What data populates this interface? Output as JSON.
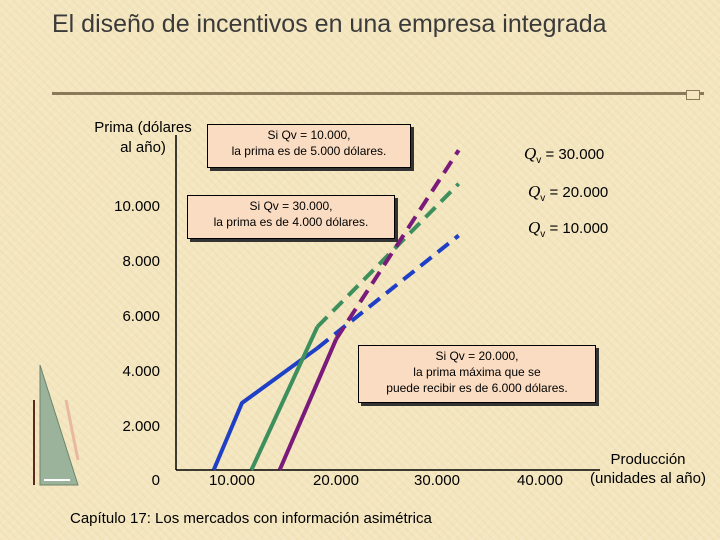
{
  "slide": {
    "title": "El diseño de incentivos en una empresa integrada",
    "footer": "Capítulo 17: Los mercados con información asimétrica"
  },
  "callouts": {
    "c1_line1": "Si Qv = 10.000,",
    "c1_line2": "la prima es de 5.000 dólares.",
    "c2_line1": "Si Qv = 30.000,",
    "c2_line2": "la prima es de 4.000 dólares.",
    "c3_line1": "Si Qv = 20.000,",
    "c3_line2": "la prima máxima que se",
    "c3_line3": "puede recibir es de 6.000 dólares."
  },
  "chart_data": {
    "type": "line",
    "ylabel": "Prima (dólares al año)",
    "xlabel": "Producción (unidades al año)",
    "y_ticks": [
      "10.000",
      "8.000",
      "6.000",
      "4.000",
      "2.000",
      "0"
    ],
    "x_ticks": [
      "10.000",
      "20.000",
      "30.000",
      "40.000"
    ],
    "xlim": [
      0,
      45000
    ],
    "ylim": [
      0,
      11000
    ],
    "series": [
      {
        "name": "Qv = 10.000",
        "color": "#1f3fc4",
        "solid_points": [
          [
            4000,
            0
          ],
          [
            7000,
            2200
          ],
          [
            15000,
            4000
          ]
        ],
        "dashed_points": [
          [
            15000,
            4000
          ],
          [
            30000,
            7700
          ]
        ]
      },
      {
        "name": "Qv = 20.000",
        "color": "#3e8f5e",
        "solid_points": [
          [
            8000,
            0
          ],
          [
            15000,
            4700
          ]
        ],
        "dashed_points": [
          [
            15000,
            4700
          ],
          [
            30000,
            9400
          ]
        ]
      },
      {
        "name": "Qv = 30.000",
        "color": "#7a1a7a",
        "solid_points": [
          [
            11000,
            0
          ],
          [
            17000,
            4300
          ]
        ],
        "dashed_points": [
          [
            17000,
            4300
          ],
          [
            30000,
            10500
          ]
        ]
      }
    ],
    "legend_labels": [
      {
        "q": "Q",
        "sub": "v",
        "text": " = 30.000"
      },
      {
        "q": "Q",
        "sub": "v",
        "text": " = 20.000"
      },
      {
        "q": "Q",
        "sub": "v",
        "text": " = 10.000"
      }
    ]
  }
}
